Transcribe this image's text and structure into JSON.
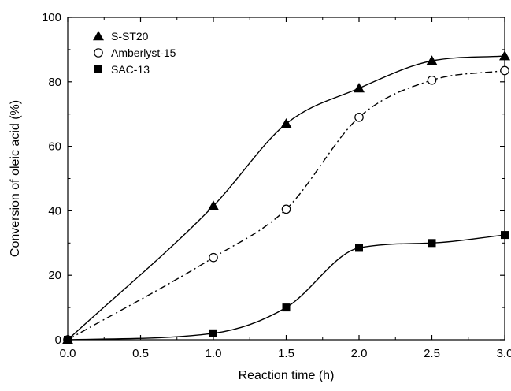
{
  "chart_data": {
    "type": "scatter",
    "title": "",
    "xlabel": "Reaction time (h)",
    "ylabel": "Conversion of oleic acid (%)",
    "xlim": [
      0,
      3.0
    ],
    "ylim": [
      0,
      100
    ],
    "x_ticks": [
      "0.0",
      "0.5",
      "1.0",
      "1.5",
      "2.0",
      "2.5",
      "3.0"
    ],
    "y_ticks": [
      "0",
      "20",
      "40",
      "60",
      "80",
      "100"
    ],
    "grid": false,
    "legend_position": "top-left",
    "series": [
      {
        "name": "S-ST20",
        "marker": "triangle-filled",
        "line_style": "solid",
        "x": [
          0,
          1.0,
          1.5,
          2.0,
          2.5,
          3.0
        ],
        "y": [
          0,
          41.5,
          67,
          78,
          86.5,
          88
        ]
      },
      {
        "name": "Amberlyst-15",
        "marker": "circle-open",
        "line_style": "dash-dot",
        "x": [
          0,
          1.0,
          1.5,
          2.0,
          2.5,
          3.0
        ],
        "y": [
          0,
          25.5,
          40.5,
          69,
          80.5,
          83.5
        ]
      },
      {
        "name": "SAC-13",
        "marker": "square-filled",
        "line_style": "solid",
        "x": [
          0,
          1.0,
          1.5,
          2.0,
          2.5,
          3.0
        ],
        "y": [
          0,
          2,
          10,
          28.5,
          30,
          32.5
        ]
      }
    ]
  }
}
